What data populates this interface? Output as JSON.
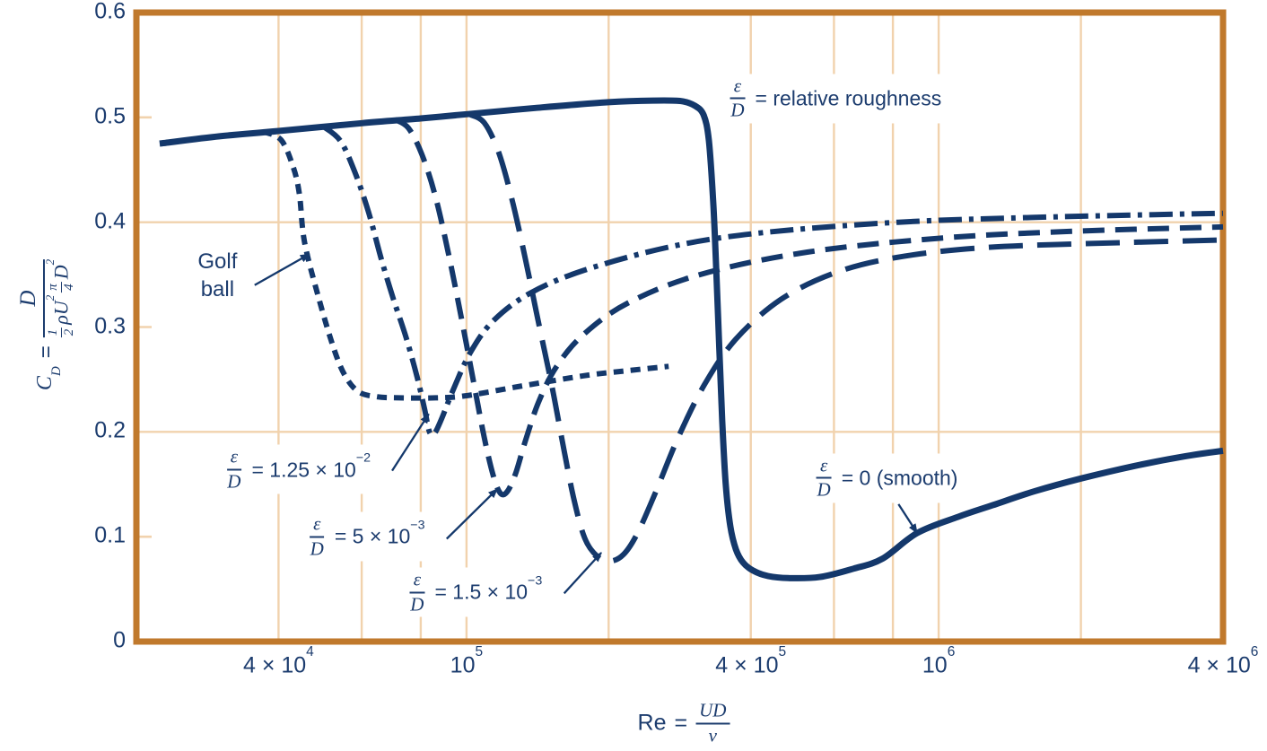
{
  "page": {
    "background": "#ffffff"
  },
  "colors": {
    "curve": "#14386b",
    "text": "#1c3c6e",
    "plot_border": "#c0792c",
    "gridline": "#f1d2ad"
  },
  "chart_data": {
    "type": "line",
    "title": "",
    "xlabel": "Re = UD/ν",
    "ylabel": "C_D = drag / ((1/2)ρU²(π/4)D²)",
    "x_scale": "log",
    "xlim": [
      20000,
      4000000
    ],
    "ylim": [
      0,
      0.6
    ],
    "grid": true,
    "legend_position": "none (curves labeled by annotations)",
    "x_ticks": [
      {
        "value": 40000,
        "base": "4 × 10",
        "exp": "4"
      },
      {
        "value": 100000,
        "base": "10",
        "exp": "5"
      },
      {
        "value": 400000,
        "base": "4 × 10",
        "exp": "5"
      },
      {
        "value": 1000000,
        "base": "10",
        "exp": "6"
      },
      {
        "value": 4000000,
        "base": "4 × 10",
        "exp": "6"
      }
    ],
    "y_ticks": [
      {
        "value": 0,
        "label": "0"
      },
      {
        "value": 0.1,
        "label": "0.1"
      },
      {
        "value": 0.2,
        "label": "0.2"
      },
      {
        "value": 0.3,
        "label": "0.3"
      },
      {
        "value": 0.4,
        "label": "0.4"
      },
      {
        "value": 0.5,
        "label": "0.5"
      },
      {
        "value": 0.6,
        "label": "0.6"
      }
    ],
    "x_gridlines": [
      40000,
      60000,
      80000,
      100000,
      200000,
      400000,
      600000,
      800000,
      1000000,
      2000000
    ],
    "y_gridlines": [
      0.2,
      0.4
    ],
    "y_tickmarks": [
      0.1,
      0.3,
      0.5
    ],
    "series": [
      {
        "id": "golf-ball",
        "name": "Golf ball",
        "line_style": "short-dash",
        "points": [
          [
            37000,
            0.4865
          ],
          [
            40500,
            0.4785
          ],
          [
            43000,
            0.452
          ],
          [
            44300,
            0.426
          ],
          [
            45400,
            0.381
          ],
          [
            48700,
            0.327
          ],
          [
            52500,
            0.278
          ],
          [
            55500,
            0.2525
          ],
          [
            59200,
            0.238
          ],
          [
            64600,
            0.2335
          ],
          [
            72000,
            0.2325
          ],
          [
            86000,
            0.2325
          ],
          [
            100000,
            0.2345
          ],
          [
            130000,
            0.2435
          ],
          [
            177000,
            0.2535
          ],
          [
            215000,
            0.258
          ],
          [
            268000,
            0.2625
          ]
        ]
      },
      {
        "id": "rough-0125",
        "name": "ε/D = 1.25 × 10⁻²",
        "roughness": 0.0125,
        "line_style": "dash-dot",
        "points": [
          [
            49500,
            0.492
          ],
          [
            54000,
            0.478
          ],
          [
            58000,
            0.448
          ],
          [
            62000,
            0.41
          ],
          [
            66000,
            0.365
          ],
          [
            70000,
            0.327
          ],
          [
            74500,
            0.29
          ],
          [
            78600,
            0.2525
          ],
          [
            81500,
            0.222
          ],
          [
            83500,
            0.2
          ],
          [
            85500,
            0.1985
          ],
          [
            88500,
            0.212
          ],
          [
            93700,
            0.24
          ],
          [
            102000,
            0.276
          ],
          [
            114000,
            0.306
          ],
          [
            136000,
            0.332
          ],
          [
            177000,
            0.354
          ],
          [
            273000,
            0.377
          ],
          [
            424000,
            0.39
          ],
          [
            820000,
            0.4
          ],
          [
            1570000,
            0.4045
          ],
          [
            2700000,
            0.407
          ],
          [
            4000000,
            0.4085
          ]
        ]
      },
      {
        "id": "rough-005",
        "name": "ε/D = 5 × 10⁻³",
        "roughness": 0.005,
        "line_style": "dash",
        "points": [
          [
            70500,
            0.498
          ],
          [
            75300,
            0.49
          ],
          [
            80400,
            0.465
          ],
          [
            85900,
            0.425
          ],
          [
            91600,
            0.37
          ],
          [
            97900,
            0.305
          ],
          [
            103500,
            0.248
          ],
          [
            109000,
            0.195
          ],
          [
            114000,
            0.158
          ],
          [
            118000,
            0.1415
          ],
          [
            122000,
            0.143
          ],
          [
            127000,
            0.16
          ],
          [
            133000,
            0.19
          ],
          [
            142000,
            0.228
          ],
          [
            155000,
            0.262
          ],
          [
            177000,
            0.293
          ],
          [
            220000,
            0.323
          ],
          [
            312000,
            0.35
          ],
          [
            527000,
            0.3715
          ],
          [
            1020000,
            0.385
          ],
          [
            1960000,
            0.3915
          ],
          [
            4000000,
            0.3955
          ]
        ]
      },
      {
        "id": "rough-0015",
        "name": "ε/D = 1.5 × 10⁻³",
        "roughness": 0.0015,
        "line_style": "long-dash",
        "points": [
          [
            102000,
            0.5025
          ],
          [
            109000,
            0.495
          ],
          [
            116700,
            0.468
          ],
          [
            124500,
            0.424
          ],
          [
            133000,
            0.367
          ],
          [
            142000,
            0.305
          ],
          [
            152000,
            0.2415
          ],
          [
            161000,
            0.182
          ],
          [
            169000,
            0.135
          ],
          [
            178000,
            0.0985
          ],
          [
            189000,
            0.0815
          ],
          [
            201000,
            0.0765
          ],
          [
            215000,
            0.083
          ],
          [
            230000,
            0.103
          ],
          [
            251000,
            0.1415
          ],
          [
            280000,
            0.1935
          ],
          [
            319000,
            0.245
          ],
          [
            372000,
            0.2885
          ],
          [
            462000,
            0.326
          ],
          [
            601000,
            0.3515
          ],
          [
            817000,
            0.3665
          ],
          [
            1270000,
            0.376
          ],
          [
            2440000,
            0.3805
          ],
          [
            4000000,
            0.383
          ]
        ]
      },
      {
        "id": "smooth",
        "name": "ε/D = 0 (smooth)",
        "roughness": 0,
        "line_style": "solid",
        "points": [
          [
            22400,
            0.475
          ],
          [
            30000,
            0.482
          ],
          [
            40000,
            0.487
          ],
          [
            60000,
            0.4945
          ],
          [
            80000,
            0.499
          ],
          [
            100000,
            0.503
          ],
          [
            140000,
            0.509
          ],
          [
            200000,
            0.5145
          ],
          [
            250000,
            0.516
          ],
          [
            285000,
            0.5155
          ],
          [
            305000,
            0.511
          ],
          [
            318000,
            0.502
          ],
          [
            326000,
            0.478
          ],
          [
            333000,
            0.42
          ],
          [
            338000,
            0.355
          ],
          [
            343000,
            0.28
          ],
          [
            348000,
            0.21
          ],
          [
            354000,
            0.15
          ],
          [
            362000,
            0.11
          ],
          [
            372000,
            0.088
          ],
          [
            385000,
            0.0755
          ],
          [
            405000,
            0.0675
          ],
          [
            435000,
            0.0625
          ],
          [
            480000,
            0.0605
          ],
          [
            560000,
            0.0615
          ],
          [
            660000,
            0.0695
          ],
          [
            760000,
            0.079
          ],
          [
            900000,
            0.1035
          ],
          [
            1100000,
            0.119
          ],
          [
            1300000,
            0.13
          ],
          [
            1600000,
            0.1435
          ],
          [
            2000000,
            0.1555
          ],
          [
            2600000,
            0.1675
          ],
          [
            3300000,
            0.1765
          ],
          [
            4000000,
            0.182
          ]
        ]
      }
    ],
    "annotations": [
      {
        "id": "relative-roughness",
        "frac_num": "ε",
        "frac_den": "D",
        "text": "= relative roughness",
        "exp": "",
        "anchor": {
          "re": 601000,
          "cd": 0.518
        },
        "arrow": null
      },
      {
        "id": "golf-ball-label",
        "lines": [
          "Golf",
          "ball"
        ],
        "anchor": {
          "re": 29700,
          "cd": 0.349
        },
        "arrow": {
          "from": {
            "re": 35600,
            "cd": 0.34
          },
          "to": {
            "re": 46500,
            "cd": 0.3695
          }
        }
      },
      {
        "id": "label-roughness-0125",
        "frac_num": "ε",
        "frac_den": "D",
        "text": "= 1.25 × 10",
        "exp": "−2",
        "anchor": {
          "re": 43800,
          "cd": 0.164
        },
        "arrow": {
          "from": {
            "re": 69600,
            "cd": 0.163
          },
          "to": {
            "re": 83200,
            "cd": 0.217
          }
        }
      },
      {
        "id": "label-roughness-005",
        "frac_num": "ε",
        "frac_den": "D",
        "text": "= 5 × 10",
        "exp": "−3",
        "anchor": {
          "re": 61200,
          "cd": 0.1
        },
        "arrow": {
          "from": {
            "re": 90800,
            "cd": 0.098
          },
          "to": {
            "re": 116200,
            "cd": 0.1455
          }
        }
      },
      {
        "id": "label-roughness-0015",
        "frac_num": "ε",
        "frac_den": "D",
        "text": "= 1.5 × 10",
        "exp": "−3",
        "anchor": {
          "re": 104000,
          "cd": 0.047
        },
        "arrow": {
          "from": {
            "re": 161000,
            "cd": 0.046
          },
          "to": {
            "re": 193000,
            "cd": 0.0847
          }
        }
      },
      {
        "id": "label-smooth",
        "frac_num": "ε",
        "frac_den": "D",
        "text": "= 0 (smooth)",
        "exp": "",
        "anchor": {
          "re": 772000,
          "cd": 0.156
        },
        "arrow": {
          "from": {
            "re": 822000,
            "cd": 0.131
          },
          "to": {
            "re": 900000,
            "cd": 0.1036
          }
        }
      }
    ]
  },
  "axis_titles": {
    "y": {
      "symbol": "C",
      "symbol_sub": "D",
      "equals": "=",
      "numerator": "D",
      "den_f1_num": "1",
      "den_f1_den": "2",
      "den_rho": "ρU",
      "den_rho_exp": "2",
      "den_f2_num": "π",
      "den_f2_den": "4",
      "den_d": "D",
      "den_d_exp": "2"
    },
    "x": {
      "name": "Re",
      "equals": "=",
      "num": "UD",
      "den": "ν"
    }
  }
}
